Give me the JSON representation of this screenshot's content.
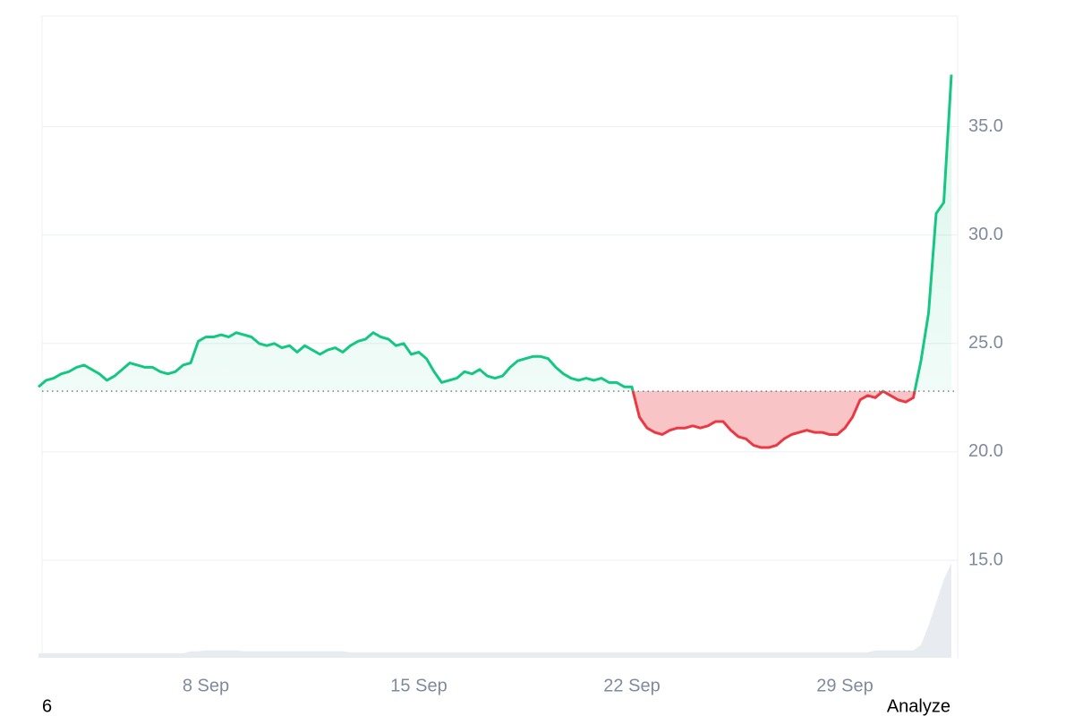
{
  "chart_data": {
    "type": "line",
    "categories": [
      null,
      null,
      null,
      null,
      null,
      null,
      null,
      null,
      null,
      null,
      null,
      null,
      null,
      null,
      null,
      null,
      null,
      null,
      null,
      null,
      null,
      null,
      "8 Sep",
      null,
      null,
      null,
      null,
      null,
      null,
      null,
      null,
      null,
      null,
      null,
      null,
      null,
      null,
      null,
      null,
      null,
      null,
      null,
      null,
      null,
      null,
      null,
      null,
      null,
      null,
      null,
      "15 Sep",
      null,
      null,
      null,
      null,
      null,
      null,
      null,
      null,
      null,
      null,
      null,
      null,
      null,
      null,
      null,
      null,
      null,
      null,
      null,
      null,
      null,
      null,
      null,
      null,
      null,
      null,
      null,
      "22 Sep",
      null,
      null,
      null,
      null,
      null,
      null,
      null,
      null,
      null,
      null,
      null,
      null,
      null,
      null,
      null,
      null,
      null,
      null,
      null,
      null,
      null,
      null,
      null,
      null,
      null,
      null,
      null,
      "29 Sep",
      null,
      null,
      null,
      null,
      null,
      null,
      null,
      null,
      null,
      null,
      null,
      null,
      null,
      null
    ],
    "values": [
      23.0,
      23.3,
      23.4,
      23.6,
      23.7,
      23.9,
      24.0,
      23.8,
      23.6,
      23.3,
      23.5,
      23.8,
      24.1,
      24.0,
      23.9,
      23.9,
      23.7,
      23.6,
      23.7,
      24.0,
      24.1,
      25.1,
      25.3,
      25.3,
      25.4,
      25.3,
      25.5,
      25.4,
      25.3,
      25.0,
      24.9,
      25.0,
      24.8,
      24.9,
      24.6,
      24.9,
      24.7,
      24.5,
      24.7,
      24.8,
      24.6,
      24.9,
      25.1,
      25.2,
      25.5,
      25.3,
      25.2,
      24.9,
      25.0,
      24.5,
      24.6,
      24.3,
      23.7,
      23.2,
      23.3,
      23.4,
      23.7,
      23.6,
      23.8,
      23.5,
      23.4,
      23.5,
      23.9,
      24.2,
      24.3,
      24.4,
      24.4,
      24.3,
      23.9,
      23.6,
      23.4,
      23.3,
      23.4,
      23.3,
      23.4,
      23.2,
      23.2,
      23.0,
      23.0,
      21.6,
      21.1,
      20.9,
      20.8,
      21.0,
      21.1,
      21.1,
      21.2,
      21.1,
      21.2,
      21.4,
      21.4,
      21.0,
      20.7,
      20.6,
      20.3,
      20.2,
      20.2,
      20.3,
      20.6,
      20.8,
      20.9,
      21.0,
      20.9,
      20.9,
      20.8,
      20.8,
      21.1,
      21.6,
      22.4,
      22.6,
      22.5,
      22.8,
      22.6,
      22.4,
      22.3,
      22.5,
      24.2,
      26.4,
      31.0,
      31.5,
      37.4
    ],
    "baseline": 22.8,
    "up_color": "#16c784",
    "down_color": "#ea3943",
    "volume": {
      "color": "#e8ebef",
      "lim": [
        0,
        107
      ],
      "values": [
        5,
        5,
        5,
        5,
        5,
        5,
        5,
        5,
        5,
        5,
        5,
        5,
        5,
        5,
        5,
        5,
        5,
        5,
        5,
        5,
        7,
        7,
        8,
        8,
        8,
        8,
        8,
        7,
        7,
        7,
        7,
        7,
        7,
        7,
        7,
        7,
        7,
        7,
        7,
        7,
        7,
        6,
        6,
        6,
        6,
        6,
        6,
        6,
        6,
        6,
        6,
        6,
        6,
        6,
        6,
        6,
        6,
        6,
        6,
        6,
        6,
        6,
        6,
        6,
        6,
        6,
        6,
        6,
        6,
        6,
        6,
        6,
        6,
        6,
        6,
        6,
        6,
        6,
        6,
        6,
        6,
        6,
        6,
        6,
        6,
        6,
        6,
        6,
        6,
        6,
        6,
        6,
        6,
        6,
        6,
        6,
        6,
        6,
        6,
        6,
        6,
        6,
        6,
        6,
        6,
        6,
        6,
        6,
        6,
        6,
        8,
        8,
        8,
        8,
        8,
        8,
        14,
        35,
        60,
        85,
        103
      ]
    },
    "ylim": [
      10.5,
      40.1
    ],
    "yticks": [
      {
        "value": 15,
        "label": "15.0"
      },
      {
        "value": 20,
        "label": "20.0"
      },
      {
        "value": 25,
        "label": "25.0"
      },
      {
        "value": 30,
        "label": "30.0"
      },
      {
        "value": 35,
        "label": "35.0"
      }
    ],
    "grid": true
  },
  "footer": {
    "left": "6",
    "right": "Analyze"
  }
}
